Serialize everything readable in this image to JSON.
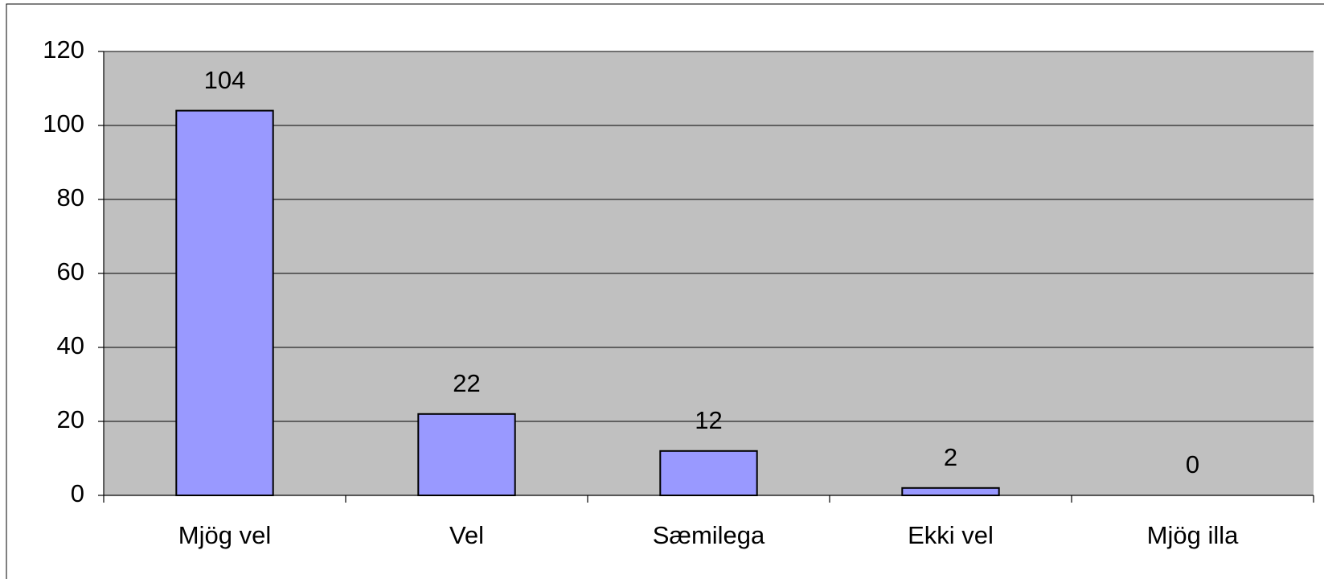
{
  "chart_data": {
    "type": "bar",
    "categories": [
      "Mjög vel",
      "Vel",
      "Sæmilega",
      "Ekki vel",
      "Mjög illa"
    ],
    "values": [
      104,
      22,
      12,
      2,
      0
    ],
    "color": "#9999ff",
    "ylim": [
      0,
      120
    ],
    "yticks": [
      0,
      20,
      40,
      60,
      80,
      100,
      120
    ],
    "grid": true
  }
}
